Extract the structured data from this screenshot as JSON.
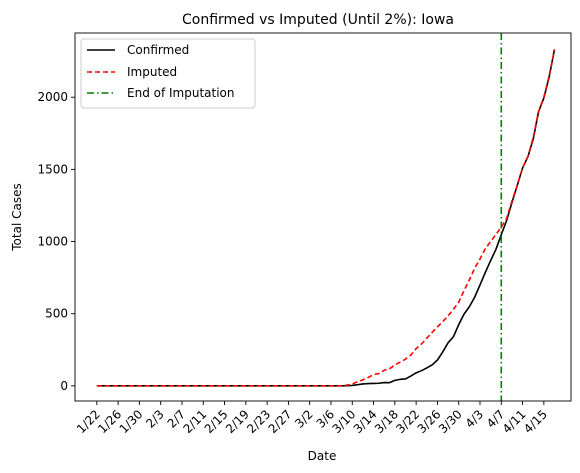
{
  "chart_data": {
    "type": "line",
    "title": "Confirmed vs Imputed (Until 2%): Iowa",
    "xlabel": "Date",
    "ylabel": "Total Cases",
    "x_ticks": [
      "1/22",
      "1/26",
      "1/30",
      "2/3",
      "2/7",
      "2/11",
      "2/15",
      "2/19",
      "2/23",
      "2/27",
      "3/2",
      "3/6",
      "3/10",
      "3/14",
      "3/18",
      "3/22",
      "3/26",
      "3/30",
      "4/3",
      "4/7",
      "4/11",
      "4/15"
    ],
    "x_tick_days": [
      0,
      4,
      8,
      12,
      16,
      20,
      24,
      28,
      32,
      36,
      40,
      44,
      48,
      52,
      56,
      60,
      64,
      68,
      72,
      76,
      80,
      84
    ],
    "xlim_days": [
      -4.1,
      89.1
    ],
    "y_ticks": [
      0,
      500,
      1000,
      1500,
      2000
    ],
    "ylim": [
      -105,
      2445
    ],
    "grid": false,
    "legend_position": "top-left",
    "vline": {
      "name": "End of Imputation",
      "x_day": 76,
      "color": "#008000"
    },
    "series": [
      {
        "name": "Confirmed",
        "color": "#000000",
        "style": "solid",
        "points": [
          [
            0,
            0
          ],
          [
            46,
            0
          ],
          [
            47,
            1
          ],
          [
            48,
            3
          ],
          [
            49,
            8
          ],
          [
            50,
            13
          ],
          [
            51,
            16
          ],
          [
            52,
            17
          ],
          [
            53,
            18
          ],
          [
            54,
            23
          ],
          [
            55,
            22
          ],
          [
            56,
            38
          ],
          [
            57,
            45
          ],
          [
            58,
            48
          ],
          [
            59,
            68
          ],
          [
            60,
            90
          ],
          [
            61,
            105
          ],
          [
            62,
            124
          ],
          [
            63,
            145
          ],
          [
            64,
            179
          ],
          [
            65,
            235
          ],
          [
            66,
            298
          ],
          [
            67,
            340
          ],
          [
            68,
            424
          ],
          [
            69,
            497
          ],
          [
            70,
            548
          ],
          [
            71,
            614
          ],
          [
            72,
            699
          ],
          [
            73,
            786
          ],
          [
            74,
            868
          ],
          [
            75,
            946
          ],
          [
            76,
            1048
          ],
          [
            77,
            1145
          ],
          [
            78,
            1270
          ],
          [
            79,
            1388
          ],
          [
            80,
            1510
          ],
          [
            81,
            1587
          ],
          [
            82,
            1710
          ],
          [
            83,
            1899
          ],
          [
            84,
            1995
          ],
          [
            85,
            2141
          ],
          [
            86,
            2332
          ]
        ]
      },
      {
        "name": "Imputed",
        "color": "#ff0000",
        "style": "dashed",
        "points": [
          [
            0,
            0
          ],
          [
            46,
            0
          ],
          [
            47,
            5
          ],
          [
            48,
            14
          ],
          [
            49,
            28
          ],
          [
            50,
            42
          ],
          [
            51,
            58
          ],
          [
            52,
            78
          ],
          [
            53,
            85
          ],
          [
            54,
            108
          ],
          [
            55,
            118
          ],
          [
            56,
            145
          ],
          [
            57,
            164
          ],
          [
            58,
            185
          ],
          [
            59,
            213
          ],
          [
            60,
            258
          ],
          [
            61,
            290
          ],
          [
            62,
            330
          ],
          [
            63,
            370
          ],
          [
            64,
            408
          ],
          [
            65,
            445
          ],
          [
            66,
            485
          ],
          [
            67,
            530
          ],
          [
            68,
            580
          ],
          [
            69,
            660
          ],
          [
            70,
            735
          ],
          [
            71,
            815
          ],
          [
            72,
            880
          ],
          [
            73,
            950
          ],
          [
            74,
            1000
          ],
          [
            75,
            1050
          ],
          [
            76,
            1100
          ],
          [
            77,
            1160
          ],
          [
            78,
            1280
          ],
          [
            79,
            1390
          ],
          [
            80,
            1510
          ],
          [
            81,
            1590
          ],
          [
            82,
            1720
          ],
          [
            83,
            1900
          ],
          [
            84,
            2000
          ],
          [
            85,
            2150
          ],
          [
            86,
            2330
          ]
        ]
      }
    ]
  }
}
